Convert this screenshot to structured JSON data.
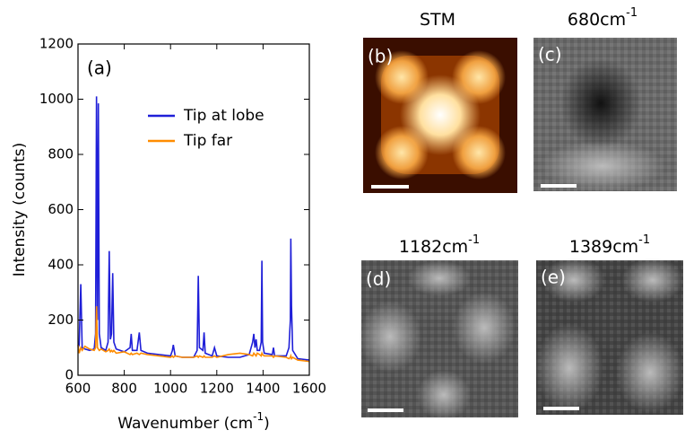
{
  "chart_data": {
    "type": "line",
    "panel_label": "(a)",
    "x_label": {
      "text": "Wavenumber (cm",
      "sup": "-1",
      "end": ")"
    },
    "y_label": "Intensity (counts)",
    "x": [
      600,
      605,
      612,
      618,
      630,
      650,
      670,
      676,
      680,
      684,
      688,
      692,
      700,
      720,
      730,
      735,
      740,
      745,
      750,
      755,
      765,
      800,
      825,
      830,
      835,
      855,
      865,
      872,
      900,
      950,
      1000,
      1008,
      1012,
      1020,
      1050,
      1100,
      1115,
      1120,
      1125,
      1140,
      1145,
      1150,
      1180,
      1190,
      1200,
      1250,
      1300,
      1340,
      1355,
      1360,
      1365,
      1370,
      1375,
      1385,
      1392,
      1395,
      1398,
      1405,
      1440,
      1445,
      1450,
      1500,
      1512,
      1518,
      1520,
      1523,
      1528,
      1550,
      1600
    ],
    "series": [
      {
        "name": "Tip at lobe",
        "color": "#1f1fd8",
        "values": [
          100,
          110,
          330,
          100,
          95,
          90,
          95,
          150,
          1010,
          200,
          985,
          150,
          100,
          90,
          120,
          450,
          130,
          150,
          370,
          120,
          95,
          85,
          100,
          150,
          90,
          90,
          155,
          90,
          80,
          75,
          70,
          90,
          110,
          70,
          65,
          65,
          90,
          360,
          100,
          90,
          155,
          80,
          70,
          100,
          70,
          65,
          65,
          75,
          120,
          150,
          100,
          130,
          90,
          90,
          120,
          415,
          120,
          80,
          75,
          100,
          70,
          70,
          100,
          200,
          495,
          250,
          90,
          60,
          55
        ]
      },
      {
        "name": "Tip far",
        "color": "#ff8c00",
        "values": [
          110,
          80,
          100,
          90,
          105,
          95,
          90,
          100,
          250,
          100,
          95,
          90,
          95,
          85,
          90,
          95,
          85,
          90,
          85,
          90,
          80,
          85,
          75,
          80,
          75,
          80,
          75,
          80,
          75,
          70,
          65,
          70,
          65,
          70,
          65,
          65,
          70,
          65,
          70,
          65,
          70,
          65,
          65,
          70,
          65,
          75,
          80,
          75,
          70,
          80,
          75,
          70,
          80,
          75,
          70,
          80,
          75,
          70,
          70,
          65,
          70,
          65,
          60,
          65,
          70,
          60,
          65,
          55,
          50
        ]
      }
    ],
    "xlim": [
      600,
      1600
    ],
    "xticks": [
      600,
      800,
      1000,
      1200,
      1400,
      1600
    ],
    "ylim": [
      0,
      1200
    ],
    "yticks": [
      0,
      200,
      400,
      600,
      800,
      1000,
      1200
    ],
    "legend": "upper right"
  },
  "panels": [
    {
      "label": "(b)",
      "title": {
        "text": "STM"
      }
    },
    {
      "label": "(c)",
      "title": {
        "text": "680cm",
        "sup": "-1"
      }
    },
    {
      "label": "(d)",
      "title": {
        "text": "1182cm",
        "sup": "-1"
      }
    },
    {
      "label": "(e)",
      "title": {
        "text": "1389cm",
        "sup": "-1"
      }
    }
  ]
}
